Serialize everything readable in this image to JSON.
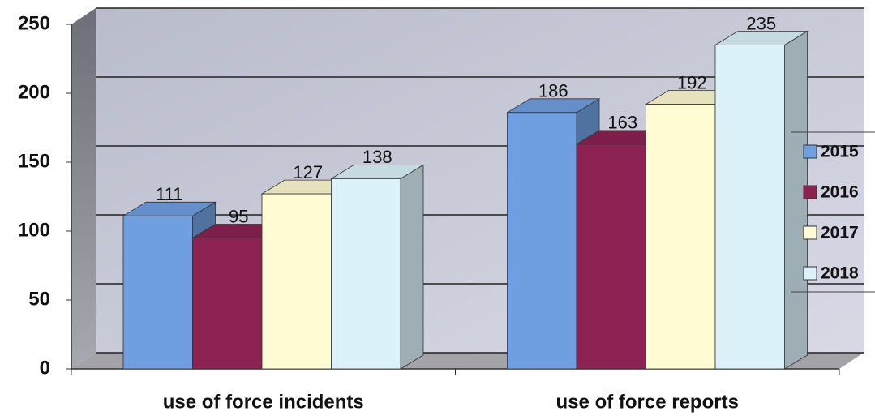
{
  "chart_data": {
    "type": "bar3d",
    "categories": [
      "use of force incidents",
      "use of force reports"
    ],
    "series": [
      {
        "name": "2015",
        "color": "#6f9fe0",
        "values": [
          111,
          186
        ]
      },
      {
        "name": "2016",
        "color": "#8b2252",
        "values": [
          95,
          163
        ]
      },
      {
        "name": "2017",
        "color": "#fffbd2",
        "values": [
          127,
          192
        ]
      },
      {
        "name": "2018",
        "color": "#dcf2fb",
        "values": [
          138,
          235
        ]
      }
    ],
    "ylim": [
      0,
      250
    ],
    "yticks": [
      0,
      50,
      100,
      150,
      200,
      250
    ],
    "grid": true,
    "legend": "right"
  }
}
